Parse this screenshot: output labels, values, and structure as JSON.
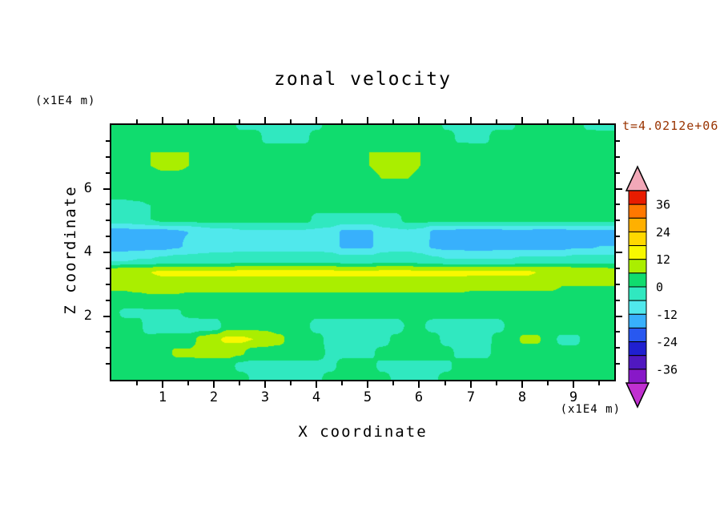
{
  "title": "zonal velocity",
  "time_label": {
    "text": "t=4.0212e+06",
    "color": "#993300"
  },
  "axes": {
    "x_label": "X coordinate",
    "x_units": "(x1E4 m)",
    "y_label": "Z coordinate",
    "y_units": "(x1E4 m)",
    "x_ticks": [
      1,
      2,
      3,
      4,
      5,
      6,
      7,
      8,
      9
    ],
    "y_ticks": [
      2,
      4,
      6
    ],
    "x_range": [
      0,
      9.8
    ],
    "z_range": [
      0,
      8
    ]
  },
  "chart_data": {
    "type": "heatmap",
    "title": "zonal velocity",
    "xlabel": "X coordinate (x1E4 m)",
    "ylabel": "Z coordinate (x1E4 m)",
    "time_annotation": "t=4.0212e+06",
    "x_range": [
      0,
      9.8
    ],
    "z_range": [
      0,
      8
    ],
    "level_step": 6,
    "levels": [
      -42,
      -36,
      -30,
      -24,
      -18,
      -12,
      -6,
      0,
      6,
      12,
      18,
      24,
      30,
      36,
      42
    ],
    "palette": [
      "#8818c8",
      "#5018c0",
      "#2020d0",
      "#2858f0",
      "#38b0fc",
      "#50e8ec",
      "#30e8c0",
      "#10dc6e",
      "#aaee00",
      "#f8f800",
      "#ffd800",
      "#ffb000",
      "#ff7800",
      "#e81c00"
    ],
    "under_arrow_color": "#c030d0",
    "over_arrow_color": "#f2a8b8",
    "colorbar_labels": [
      36,
      24,
      12,
      0,
      -12,
      -24,
      -36
    ],
    "grid": [
      [
        3,
        3,
        3,
        3,
        3,
        3,
        3,
        3,
        3,
        3,
        -1,
        -1,
        -1,
        -1,
        -1,
        -1,
        -1,
        3,
        3,
        3,
        3,
        3,
        3,
        3,
        3,
        3,
        -1,
        -1,
        -1,
        -1,
        -1,
        -1,
        3,
        3,
        3,
        3,
        3,
        -1,
        -1,
        -1
      ],
      [
        4,
        4,
        4,
        4,
        3,
        3,
        3,
        3,
        3,
        3,
        3,
        3,
        -1,
        -1,
        -1,
        -1,
        3,
        3,
        3,
        3,
        4,
        4,
        4,
        3,
        3,
        3,
        3,
        -1,
        -1,
        -1,
        3,
        3,
        3,
        3,
        4,
        4,
        3,
        3,
        2,
        2
      ],
      [
        4,
        4,
        5,
        6,
        6,
        6,
        6,
        6,
        5,
        4,
        3,
        3,
        3,
        3,
        3,
        3,
        4,
        4,
        4,
        5,
        6,
        6,
        6,
        6,
        6,
        6,
        5,
        4,
        3,
        3,
        3,
        4,
        4,
        4,
        4,
        4,
        3,
        3,
        3,
        3
      ],
      [
        3,
        4,
        5,
        6,
        7,
        7,
        6,
        5,
        4,
        3,
        3,
        2,
        2,
        2,
        2,
        2,
        3,
        3,
        4,
        5,
        6,
        7,
        7,
        7,
        6,
        5,
        4,
        3,
        3,
        3,
        3,
        3,
        4,
        4,
        4,
        3,
        3,
        3,
        3,
        3
      ],
      [
        3,
        3,
        3,
        3,
        4,
        4,
        4,
        3,
        3,
        3,
        3,
        3,
        3,
        3,
        3,
        3,
        3,
        3,
        4,
        5,
        5,
        6,
        6,
        6,
        5,
        5,
        4,
        4,
        3,
        3,
        3,
        3,
        3,
        3,
        3,
        3,
        3,
        3,
        3,
        3
      ],
      [
        3,
        3,
        3,
        4,
        5,
        6,
        6,
        6,
        6,
        6,
        6,
        6,
        6,
        5,
        4,
        3,
        3,
        3,
        3,
        3,
        3,
        4,
        5,
        6,
        6,
        6,
        6,
        6,
        6,
        6,
        6,
        5,
        4,
        4,
        3,
        3,
        3,
        3,
        3,
        3
      ],
      [
        -2,
        -2,
        -1,
        0,
        2,
        3,
        3,
        3,
        3,
        3,
        3,
        3,
        3,
        3,
        3,
        3,
        3,
        3,
        3,
        3,
        3,
        3,
        3,
        3,
        4,
        4,
        4,
        3,
        3,
        3,
        3,
        3,
        3,
        3,
        3,
        3,
        3,
        3,
        3,
        3
      ],
      [
        -3,
        -3,
        -2,
        0,
        2,
        2,
        2,
        2,
        2,
        2,
        2,
        2,
        2,
        2,
        2,
        2,
        -2,
        -2,
        -2,
        -2,
        -2,
        -2,
        -2,
        2,
        2,
        2,
        2,
        2,
        2,
        2,
        2,
        2,
        2,
        2,
        2,
        2,
        2,
        2,
        2,
        2
      ],
      [
        -14,
        -14,
        -14,
        -14,
        -14,
        -13,
        -12,
        -10,
        -8,
        -8,
        -7,
        -7,
        -7,
        -7,
        -7,
        -7,
        -7,
        -8,
        -13,
        -13,
        -13,
        -8,
        -7,
        -7,
        -8,
        -13,
        -13,
        -14,
        -14,
        -14,
        -14,
        -13,
        -13,
        -14,
        -14,
        -14,
        -13,
        -13,
        -13,
        -13
      ],
      [
        -15,
        -15,
        -15,
        -14,
        -14,
        -13,
        -11,
        -9,
        -8,
        -8,
        -8,
        -8,
        -8,
        -8,
        -8,
        -8,
        -8,
        -9,
        -13,
        -13,
        -13,
        -9,
        -8,
        -8,
        -9,
        -13,
        -14,
        -14,
        -15,
        -15,
        -14,
        -14,
        -14,
        -14,
        -14,
        -14,
        -13,
        -13,
        -12,
        -12
      ],
      [
        -7,
        -7,
        -6,
        -6,
        -5,
        -4,
        -4,
        -4,
        -4,
        -4,
        -3,
        -3,
        -3,
        -3,
        -3,
        -3,
        -3,
        -3,
        -4,
        -4,
        -4,
        -3,
        -3,
        -3,
        -4,
        -5,
        -6,
        -6,
        -6,
        -6,
        -6,
        -6,
        -5,
        -5,
        -5,
        -5,
        -4,
        -4,
        -4,
        -4
      ],
      [
        10,
        11,
        12,
        12,
        13,
        13,
        13,
        13,
        13,
        13,
        13,
        13,
        13,
        13,
        13,
        13,
        13,
        13,
        13,
        13,
        13,
        13,
        13,
        13,
        13,
        13,
        13,
        13,
        13,
        13,
        13,
        13,
        13,
        12,
        12,
        12,
        11,
        10,
        10,
        9
      ],
      [
        7,
        7,
        8,
        8,
        8,
        8,
        8,
        8,
        8,
        8,
        8,
        8,
        8,
        8,
        8,
        8,
        8,
        8,
        8,
        8,
        8,
        8,
        8,
        8,
        8,
        8,
        8,
        8,
        7,
        7,
        7,
        7,
        7,
        7,
        7,
        6,
        6,
        6,
        6,
        6
      ],
      [
        4,
        4,
        4,
        5,
        5,
        5,
        4,
        4,
        4,
        4,
        4,
        4,
        4,
        4,
        4,
        4,
        4,
        4,
        4,
        4,
        4,
        4,
        4,
        4,
        4,
        4,
        4,
        4,
        4,
        4,
        4,
        4,
        4,
        4,
        4,
        4,
        4,
        4,
        4,
        4
      ],
      [
        2,
        -1,
        -1,
        -1,
        -1,
        -1,
        2,
        3,
        3,
        3,
        3,
        3,
        3,
        3,
        3,
        3,
        3,
        3,
        3,
        3,
        3,
        3,
        3,
        3,
        3,
        3,
        3,
        3,
        3,
        3,
        3,
        3,
        3,
        3,
        3,
        3,
        3,
        3,
        3,
        3
      ],
      [
        2,
        2,
        2,
        -4,
        -4,
        -4,
        -4,
        -4,
        -4,
        4,
        4,
        4,
        4,
        2,
        2,
        2,
        -4,
        -4,
        -4,
        -4,
        -4,
        -4,
        -4,
        1,
        1,
        -3,
        -3,
        -3,
        -3,
        -3,
        -3,
        3,
        3,
        3,
        3,
        5,
        5,
        5,
        5,
        5
      ],
      [
        1,
        1,
        1,
        2,
        3,
        3,
        3,
        8,
        11,
        13,
        13,
        12,
        10,
        8,
        3,
        3,
        3,
        -4,
        -4,
        -4,
        -4,
        -4,
        2,
        2,
        3,
        3,
        -3,
        -3,
        -3,
        -3,
        3,
        3,
        7,
        7,
        3,
        -2,
        -2,
        4,
        4,
        4
      ],
      [
        2,
        2,
        3,
        3,
        3,
        7,
        7,
        8,
        8,
        8,
        7,
        3,
        3,
        3,
        3,
        3,
        3,
        -2,
        -2,
        -2,
        -2,
        3,
        3,
        3,
        3,
        3,
        3,
        -2,
        -2,
        -2,
        3,
        3,
        3,
        3,
        3,
        3,
        3,
        3,
        3,
        3
      ],
      [
        3,
        3,
        3,
        3,
        3,
        3,
        3,
        3,
        3,
        3,
        -2,
        -2,
        -2,
        -2,
        -2,
        -2,
        -2,
        -2,
        3,
        3,
        3,
        -2,
        -2,
        -2,
        -2,
        -2,
        -2,
        3,
        3,
        3,
        3,
        3,
        3,
        3,
        3,
        3,
        3,
        3,
        3,
        3
      ],
      [
        3,
        3,
        3,
        3,
        3,
        3,
        3,
        3,
        3,
        3,
        3,
        -1,
        -1,
        -1,
        -1,
        -1,
        -1,
        3,
        3,
        3,
        3,
        3,
        -1,
        -1,
        -1,
        -1,
        3,
        3,
        3,
        3,
        3,
        3,
        3,
        3,
        3,
        3,
        3,
        3,
        3,
        3
      ]
    ]
  }
}
